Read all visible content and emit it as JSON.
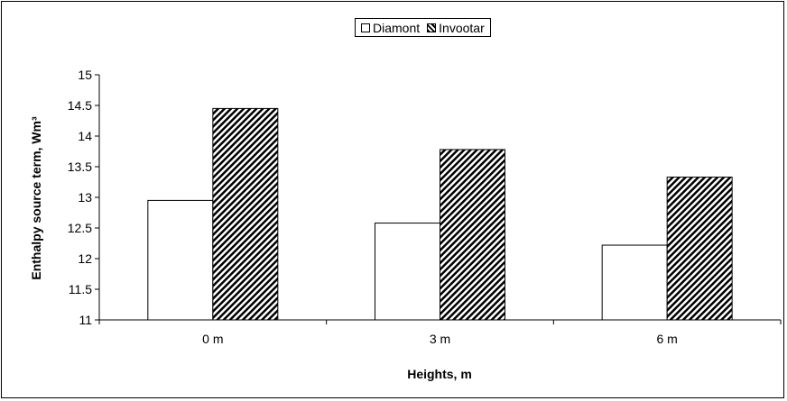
{
  "chart_data": {
    "type": "bar",
    "categories": [
      "0 m",
      "3 m",
      "6 m"
    ],
    "series": [
      {
        "name": "Diamont",
        "values": [
          12.95,
          12.58,
          12.22
        ],
        "pattern": "solid",
        "color": "#ffffff"
      },
      {
        "name": "Invootar",
        "values": [
          14.45,
          13.78,
          13.33
        ],
        "pattern": "hatch",
        "color": "#000000"
      }
    ],
    "xlabel": "Heights, m",
    "ylabel": "Enthalpy source term, Wm³",
    "ylim": [
      11,
      15
    ],
    "yticks": [
      "11",
      "11.5",
      "12",
      "12.5",
      "13",
      "13.5",
      "14",
      "14.5",
      "15"
    ],
    "grid": false,
    "legend": "top"
  }
}
